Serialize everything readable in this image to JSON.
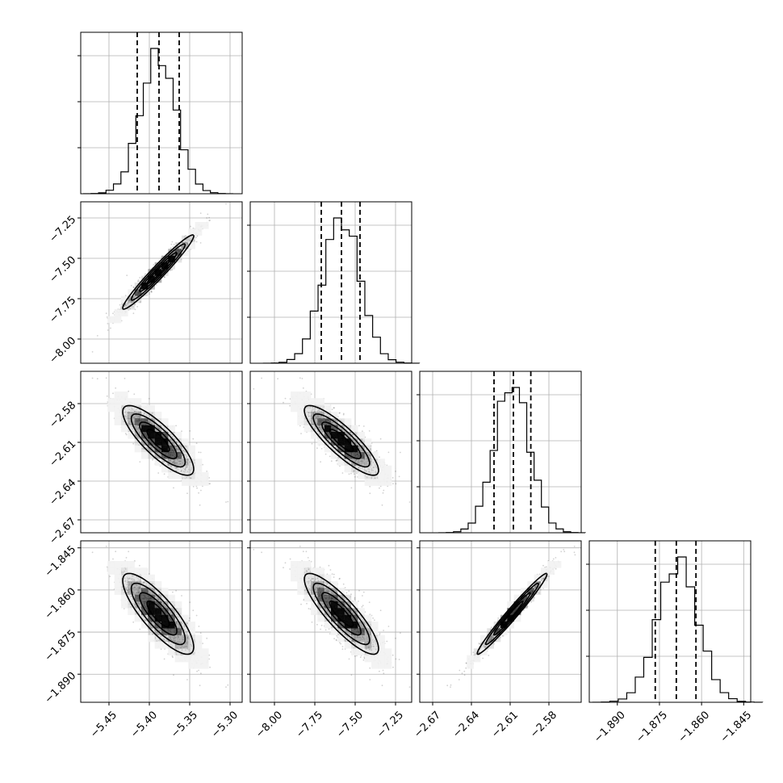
{
  "chart_data": {
    "type": "corner",
    "grid": true,
    "parameters": [
      {
        "range": [
          -5.485,
          -5.285
        ],
        "ticks": [
          -5.45,
          -5.4,
          -5.35,
          -5.3
        ],
        "tick_labels": [
          "−5.45",
          "−5.40",
          "−5.35",
          "−5.30"
        ],
        "mean": -5.389,
        "sd": 0.022,
        "quantiles": [
          -5.415,
          -5.388,
          -5.363
        ]
      },
      {
        "range": [
          -8.15,
          -7.15
        ],
        "ticks": [
          -8.0,
          -7.75,
          -7.5,
          -7.25
        ],
        "tick_labels": [
          "−8.00",
          "−7.75",
          "−7.50",
          "−7.25"
        ],
        "mean": -7.585,
        "sd": 0.115,
        "quantiles": [
          -7.71,
          -7.585,
          -7.47
        ]
      },
      {
        "range": [
          -2.68,
          -2.555
        ],
        "ticks": [
          -2.67,
          -2.64,
          -2.61,
          -2.58
        ],
        "tick_labels": [
          "−2.67",
          "−2.64",
          "−2.61",
          "−2.58"
        ],
        "mean": -2.6085,
        "sd": 0.0135,
        "quantiles": [
          -2.6225,
          -2.6075,
          -2.594
        ]
      },
      {
        "range": [
          -1.9,
          -1.8425
        ],
        "ticks": [
          -1.89,
          -1.875,
          -1.86,
          -1.845
        ],
        "tick_labels": [
          "−1.890",
          "−1.875",
          "−1.860",
          "−1.845"
        ],
        "mean": -1.8685,
        "sd": 0.0072,
        "quantiles": [
          -1.8765,
          -1.869,
          -1.862
        ]
      }
    ],
    "correlations": {
      "1-0": 0.97,
      "2-0": -0.82,
      "2-1": -0.86,
      "3-0": -0.82,
      "3-1": -0.86,
      "3-2": 0.98
    },
    "histogram_bins": 20,
    "scatter_points": 1400,
    "y_ticks_shown_on_rows": [
      1,
      2,
      3
    ],
    "x_ticks_shown_on_row": 3
  }
}
